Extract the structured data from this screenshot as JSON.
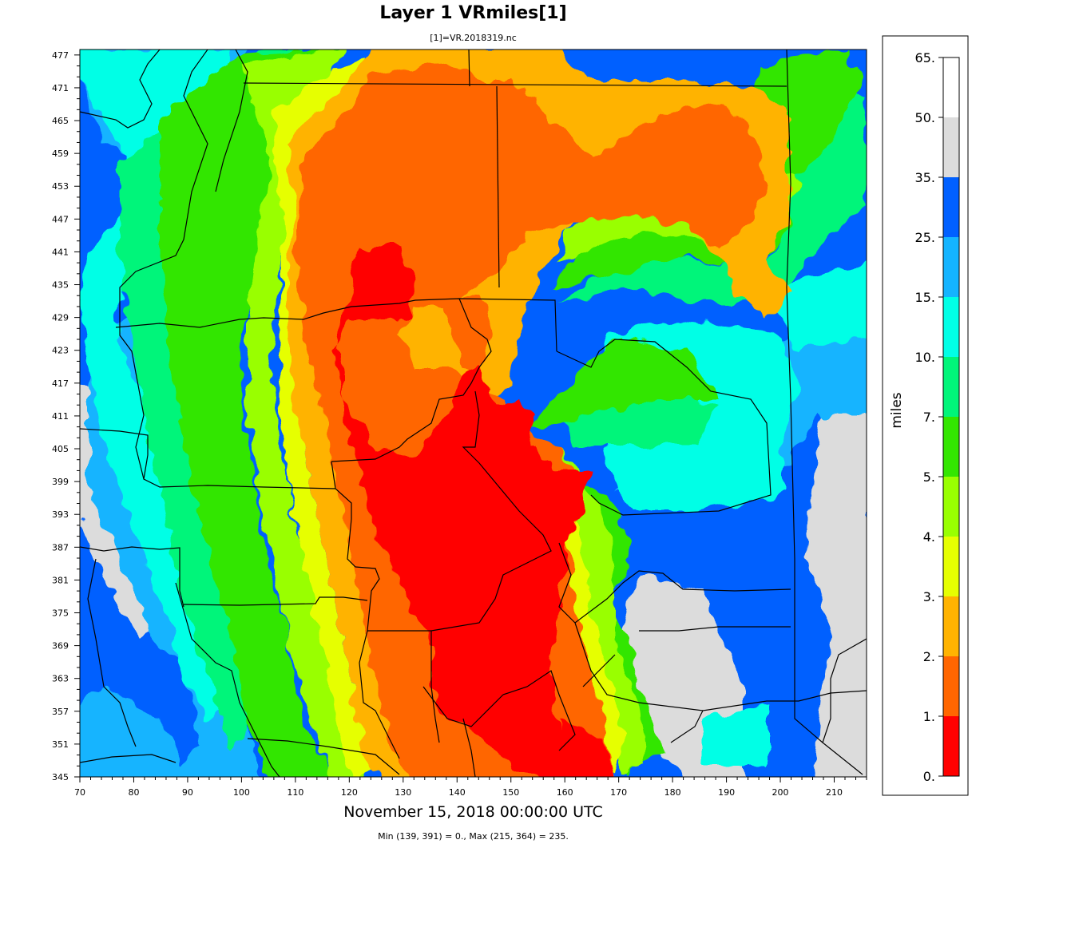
{
  "title": "Layer 1 VRmiles[1]",
  "subtitle": "[1]=VR.2018319.nc",
  "date": "November 15, 2018 00:00:00 UTC",
  "minmax": "Min (139, 391) = 0., Max (215, 364) = 235.",
  "x_axis": {
    "min": 70,
    "max": 216,
    "ticks": [
      "70",
      "80",
      "90",
      "100",
      "110",
      "120",
      "130",
      "140",
      "150",
      "160",
      "170",
      "180",
      "190",
      "200",
      "210"
    ]
  },
  "y_axis": {
    "min": 345,
    "max": 478,
    "ticks": [
      "345",
      "351",
      "357",
      "363",
      "369",
      "375",
      "381",
      "387",
      "393",
      "399",
      "405",
      "411",
      "417",
      "423",
      "429",
      "435",
      "441",
      "447",
      "453",
      "459",
      "465",
      "471",
      "477"
    ]
  },
  "legend": {
    "label": "miles",
    "ticks": [
      "0.",
      "1.",
      "2.",
      "3.",
      "4.",
      "5.",
      "7.",
      "10.",
      "15.",
      "25.",
      "35.",
      "50.",
      "65."
    ],
    "colors": [
      "#ff0000",
      "#ff6600",
      "#ffb300",
      "#e6ff00",
      "#99ff00",
      "#33e600",
      "#00f57a",
      "#00ffe6",
      "#14b4ff",
      "#0060ff",
      "#dcdcdc"
    ]
  },
  "colors": {
    "red": "#ff0000",
    "dark_orange": "#ff6600",
    "orange": "#ffb300",
    "yellow": "#e6ff00",
    "yellow_green": "#99ff00",
    "green": "#33e600",
    "sea_green": "#00f57a",
    "cyan": "#00ffe6",
    "sky_blue": "#14b4ff",
    "blue": "#0060ff",
    "gray": "#dcdcdc"
  }
}
